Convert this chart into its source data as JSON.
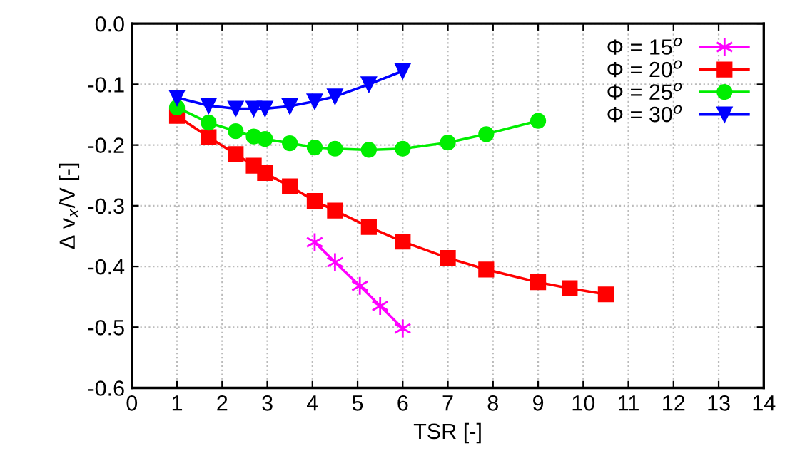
{
  "chart_data": {
    "type": "line",
    "xlabel": "TSR [-]",
    "ylabel": "Δ v$_{x}$/V [-]",
    "xlim": [
      0,
      14
    ],
    "xticks": [
      0,
      1,
      2,
      3,
      4,
      5,
      6,
      7,
      8,
      9,
      10,
      11,
      12,
      13,
      14
    ],
    "ylim": [
      -0.6,
      0
    ],
    "yticks": [
      {
        "value": -0.6,
        "label": "-0.6"
      },
      {
        "value": -0.5,
        "label": "-0.5"
      },
      {
        "value": -0.4,
        "label": "-0.4"
      },
      {
        "value": -0.3,
        "label": "-0.3"
      },
      {
        "value": -0.2,
        "label": "-0.2"
      },
      {
        "value": -0.1,
        "label": "-0.1"
      },
      {
        "value": 0,
        "label": "0.0"
      }
    ],
    "grid": true,
    "legend": "top right",
    "line_style": "solid",
    "series": [
      {
        "name": "Φ = 15$^{o}$",
        "color": "#ff00ff",
        "marker": "cross",
        "x": [
          4.05,
          4.5,
          5.05,
          5.5,
          6
        ],
        "values": [
          -0.36,
          -0.393,
          -0.432,
          -0.465,
          -0.502
        ]
      },
      {
        "name": "Φ = 20$^{o}$",
        "color": "#ff0000",
        "marker": "square",
        "x": [
          1,
          1.7,
          2.3,
          2.7,
          2.95,
          3.5,
          4.05,
          4.5,
          5.25,
          6,
          7,
          7.85,
          9,
          9.7,
          10.5
        ],
        "values": [
          -0.152,
          -0.187,
          -0.215,
          -0.234,
          -0.246,
          -0.268,
          -0.292,
          -0.308,
          -0.335,
          -0.359,
          -0.386,
          -0.405,
          -0.426,
          -0.436,
          -0.446
        ]
      },
      {
        "name": "Φ = 25$^{o}$",
        "color": "#00ee00",
        "marker": "circle",
        "x": [
          1,
          1.7,
          2.3,
          2.7,
          2.95,
          3.5,
          4.05,
          4.5,
          5.25,
          6,
          7,
          7.85,
          9
        ],
        "values": [
          -0.138,
          -0.163,
          -0.177,
          -0.186,
          -0.19,
          -0.197,
          -0.204,
          -0.206,
          -0.208,
          -0.206,
          -0.196,
          -0.182,
          -0.16
        ]
      },
      {
        "name": "Φ = 30$^{o}$",
        "color": "#0000ff",
        "marker": "triangle",
        "x": [
          1,
          1.7,
          2.3,
          2.7,
          2.95,
          3.5,
          4.05,
          4.5,
          5.25,
          6
        ],
        "values": [
          -0.122,
          -0.135,
          -0.14,
          -0.14,
          -0.14,
          -0.136,
          -0.128,
          -0.12,
          -0.1,
          -0.078
        ]
      }
    ]
  }
}
